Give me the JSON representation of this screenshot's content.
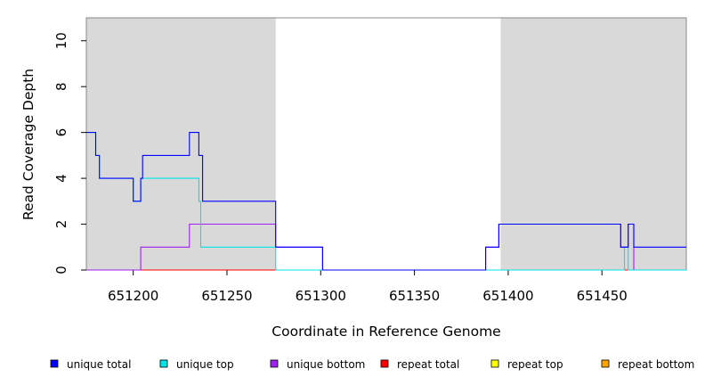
{
  "chart_data": {
    "type": "line",
    "title": "",
    "xlabel": "Coordinate in Reference Genome",
    "ylabel": "Read Coverage Depth",
    "xlim": [
      651175,
      651495
    ],
    "ylim": [
      0,
      11
    ],
    "xticks": [
      651200,
      651250,
      651300,
      651350,
      651400,
      651450
    ],
    "yticks": [
      0,
      2,
      4,
      6,
      8,
      10
    ],
    "shaded_regions": [
      [
        651175,
        651276
      ],
      [
        651396,
        651495
      ]
    ],
    "shade_color": "#d9d9d9",
    "legend_position": "bottom",
    "series": [
      {
        "name": "unique total",
        "color": "#0000ff",
        "steps": [
          [
            651175,
            6
          ],
          [
            651180,
            6
          ],
          [
            651180,
            5
          ],
          [
            651182,
            5
          ],
          [
            651182,
            4
          ],
          [
            651200,
            4
          ],
          [
            651200,
            3
          ],
          [
            651204,
            3
          ],
          [
            651204,
            4
          ],
          [
            651205,
            4
          ],
          [
            651205,
            5
          ],
          [
            651230,
            5
          ],
          [
            651230,
            6
          ],
          [
            651235,
            6
          ],
          [
            651235,
            5
          ],
          [
            651237,
            5
          ],
          [
            651237,
            3
          ],
          [
            651276,
            3
          ],
          [
            651276,
            1
          ],
          [
            651301,
            1
          ],
          [
            651301,
            0
          ],
          [
            651388,
            0
          ],
          [
            651388,
            1
          ],
          [
            651395,
            1
          ],
          [
            651395,
            2
          ],
          [
            651460,
            2
          ],
          [
            651460,
            1
          ],
          [
            651464,
            1
          ],
          [
            651464,
            2
          ],
          [
            651467,
            2
          ],
          [
            651467,
            1
          ],
          [
            651495,
            1
          ]
        ]
      },
      {
        "name": "unique top",
        "color": "#00e5e5",
        "steps": [
          [
            651175,
            6
          ],
          [
            651180,
            6
          ],
          [
            651180,
            5
          ],
          [
            651182,
            5
          ],
          [
            651182,
            4
          ],
          [
            651200,
            4
          ],
          [
            651200,
            3
          ],
          [
            651204,
            3
          ],
          [
            651204,
            4
          ],
          [
            651235,
            4
          ],
          [
            651235,
            3
          ],
          [
            651236,
            3
          ],
          [
            651236,
            1
          ],
          [
            651276,
            1
          ],
          [
            651276,
            0
          ],
          [
            651462,
            0
          ],
          [
            651462,
            1
          ],
          [
            651464,
            1
          ],
          [
            651464,
            0
          ],
          [
            651495,
            0
          ]
        ]
      },
      {
        "name": "unique bottom",
        "color": "#a020f0",
        "steps": [
          [
            651175,
            0
          ],
          [
            651204,
            0
          ],
          [
            651204,
            1
          ],
          [
            651230,
            1
          ],
          [
            651230,
            2
          ],
          [
            651276,
            2
          ],
          [
            651276,
            1
          ],
          [
            651301,
            1
          ],
          [
            651301,
            0
          ],
          [
            651388,
            0
          ],
          [
            651388,
            1
          ],
          [
            651395,
            1
          ],
          [
            651395,
            2
          ],
          [
            651460,
            2
          ],
          [
            651460,
            1
          ],
          [
            651464,
            1
          ],
          [
            651464,
            2
          ],
          [
            651467,
            2
          ],
          [
            651467,
            0
          ],
          [
            651495,
            0
          ]
        ]
      },
      {
        "name": "repeat total",
        "color": "#ff0000",
        "steps": [
          [
            651175,
            0
          ],
          [
            651495,
            0
          ]
        ]
      },
      {
        "name": "repeat top",
        "color": "#ffff00",
        "steps": [
          [
            651175,
            0
          ],
          [
            651495,
            0
          ]
        ]
      },
      {
        "name": "repeat bottom",
        "color": "#ffa500",
        "steps": [
          [
            651175,
            0
          ],
          [
            651495,
            0
          ]
        ]
      }
    ]
  }
}
